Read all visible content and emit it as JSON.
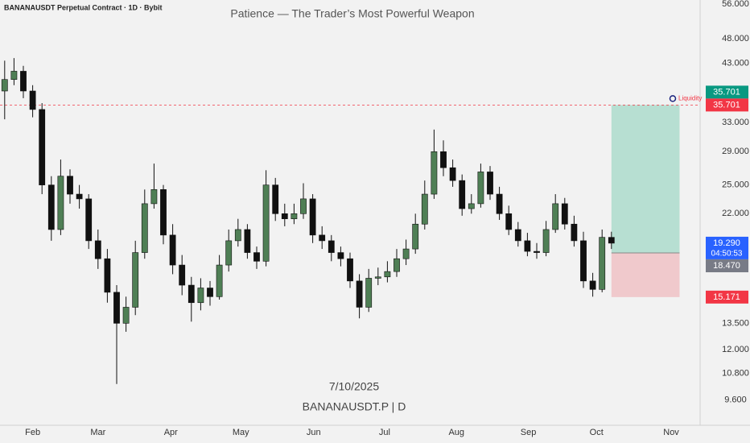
{
  "header": "BANANAUSDT Perpetual Contract · 1D · Bybit",
  "chart_data": {
    "type": "candlestick",
    "title": "Patience — The Trader’s Most Powerful Weapon",
    "watermark_date": "7/10/2025",
    "watermark_symbol": "BANANAUSDT.P | D",
    "log_scale": true,
    "up_color": "#4f7f55",
    "down_color": "#111111",
    "open": [
      38,
      40,
      41.5,
      38,
      35,
      25,
      20.5,
      26,
      24,
      23.5,
      19.5,
      18,
      15.5,
      13.5,
      14.5,
      18.5,
      23,
      24.5,
      20,
      17.5,
      16,
      14.8,
      15.8,
      15.2,
      17.5,
      19.5,
      20.5,
      18.5,
      17.8,
      25,
      22,
      21.5,
      22,
      23.5,
      20,
      19.5,
      18.5,
      18,
      16.3,
      14.5,
      16.5,
      16.6,
      17,
      18,
      18.8,
      21,
      24,
      29,
      27,
      25.5,
      22.5,
      23,
      26.5,
      24,
      22,
      20.5,
      19.5,
      18.6,
      18.5,
      20.5,
      23,
      21,
      19.5,
      16.3,
      15.7,
      19.8
    ],
    "high": [
      43.5,
      44,
      42.5,
      39,
      36,
      26,
      28,
      26.8,
      25,
      24,
      20.5,
      18.8,
      16,
      15.2,
      19.5,
      24.5,
      27.5,
      25,
      21,
      18.3,
      16.6,
      16.5,
      16.3,
      18.3,
      20.5,
      21.5,
      21,
      19,
      26.7,
      25.8,
      23,
      23,
      25.2,
      24,
      20.8,
      20,
      19,
      18.5,
      16.8,
      17.2,
      17.3,
      17.8,
      18.8,
      19.6,
      22,
      25.5,
      32,
      30.5,
      28,
      26.2,
      24,
      27.5,
      27.2,
      24.8,
      22.8,
      21.2,
      20.2,
      19.3,
      21.3,
      24,
      23.6,
      21.8,
      20.3,
      16.9,
      20.5,
      20.3
    ],
    "low": [
      33.5,
      39,
      36.8,
      33.8,
      24,
      19.5,
      20,
      23,
      22.5,
      18.8,
      17.2,
      14.8,
      10.3,
      13,
      14,
      18,
      22.5,
      19.2,
      16.8,
      15.3,
      13.6,
      14.3,
      14.6,
      15,
      17,
      19,
      18,
      17.2,
      17.4,
      21.3,
      20.8,
      21,
      21.5,
      19.3,
      18.8,
      17.8,
      17.4,
      15.8,
      13.8,
      14.2,
      16,
      16.2,
      16.6,
      17.5,
      18.4,
      20.5,
      23.5,
      26,
      24.8,
      21.8,
      22,
      22.6,
      23.4,
      21.4,
      20,
      19,
      18.2,
      18,
      18.2,
      20.2,
      20.5,
      19,
      15.8,
      15.2,
      15.5,
      18.8
    ],
    "close": [
      40,
      41.5,
      38,
      35,
      25,
      20.5,
      26,
      24,
      23.5,
      19.5,
      18,
      15.5,
      13.5,
      14.5,
      18.5,
      23,
      24.5,
      20,
      17.5,
      16,
      14.8,
      15.8,
      15.2,
      17.5,
      19.5,
      20.5,
      18.5,
      17.8,
      25,
      22,
      21.5,
      22,
      23.5,
      20,
      19.5,
      18.5,
      18,
      16.3,
      14.5,
      16.5,
      16.6,
      17,
      18,
      18.8,
      21,
      24,
      29,
      27,
      25.5,
      22.5,
      23,
      26.5,
      24,
      22,
      20.5,
      19.5,
      18.6,
      18.5,
      20.5,
      23,
      21,
      19.5,
      16.3,
      15.7,
      19.8,
      19.29
    ],
    "xlim": [
      -0.5,
      74.5
    ],
    "xticks": [
      {
        "value": 3,
        "label": "Feb"
      },
      {
        "value": 10,
        "label": "Mar"
      },
      {
        "value": 17.8,
        "label": "Apr"
      },
      {
        "value": 25.3,
        "label": "May"
      },
      {
        "value": 33.1,
        "label": "Jun"
      },
      {
        "value": 40.7,
        "label": "Jul"
      },
      {
        "value": 48.4,
        "label": "Aug"
      },
      {
        "value": 56.1,
        "label": "Sep"
      },
      {
        "value": 63.4,
        "label": "Oct"
      },
      {
        "value": 71.4,
        "label": "Nov"
      }
    ],
    "ylim": [
      8.57,
      57
    ],
    "yticks": [
      {
        "value": 56,
        "label": "56.000"
      },
      {
        "value": 48,
        "label": "48.000"
      },
      {
        "value": 43,
        "label": "43.000"
      },
      {
        "value": 33,
        "label": "33.000"
      },
      {
        "value": 29,
        "label": "29.000"
      },
      {
        "value": 25,
        "label": "25.000"
      },
      {
        "value": 22,
        "label": "22.000"
      },
      {
        "value": 13.5,
        "label": "13.500"
      },
      {
        "value": 12,
        "label": "12.000"
      },
      {
        "value": 10.8,
        "label": "10.800"
      },
      {
        "value": 9.6,
        "label": "9.600"
      }
    ],
    "liquidity": {
      "label": "Liquidity",
      "value": 35.701,
      "color": "#f23645"
    },
    "position": {
      "entry": 18.47,
      "target": 35.701,
      "stop": 15.171,
      "start": 65,
      "end": 72.3
    },
    "price_tags": [
      {
        "value": 35.701,
        "color": "#089981"
      },
      {
        "value": 35.701,
        "color": "#f23645"
      },
      {
        "value": {
          "value": 19.29,
          "label": "19.290"
        },
        "color": "#2962ff",
        "countdown": "04:50:53"
      },
      {
        "value": {
          "value": 18.47,
          "label": "18.470"
        },
        "color": "#787b86"
      },
      {
        "value": 15.171,
        "color": "#f23645"
      }
    ]
  }
}
